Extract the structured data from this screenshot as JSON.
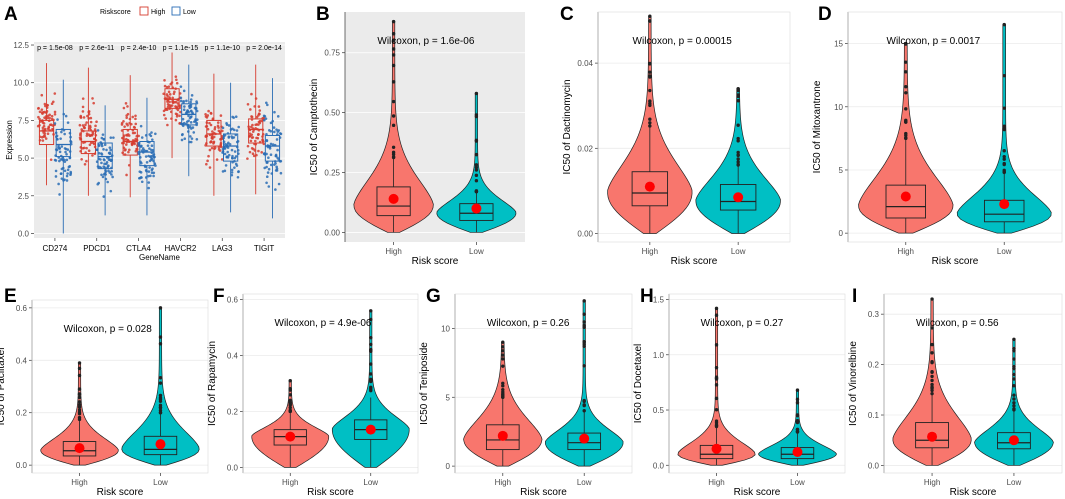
{
  "colors": {
    "high": "#f8766d",
    "low": "#00bfc4",
    "high_a": "#d63c2f",
    "low_a": "#2a6db5",
    "mean_dot": "#ff0000",
    "panel_bg": "#ebebeb"
  },
  "chart_data": [
    {
      "panel": "A",
      "type": "box",
      "legend_title": "Riskscore",
      "legend_labels": [
        "High",
        "Low"
      ],
      "xlabel": "GeneName",
      "ylabel": "Expression",
      "ylim": [
        -0.3,
        12.7
      ],
      "yticks": [
        "0.0",
        "2.5",
        "5.0",
        "7.5",
        "10.0",
        "12.5"
      ],
      "ytick_values": [
        0,
        2.5,
        5,
        7.5,
        10,
        12.5
      ],
      "categories": [
        "CD274",
        "PDCD1",
        "CTLA4",
        "HAVCR2",
        "LAG3",
        "TIGIT"
      ],
      "pvalues": [
        "p = 1.5e-08",
        "p = 2.6e-11",
        "p = 2.4e-10",
        "p = 1.1e-15",
        "p = 1.1e-10",
        "p = 2.0e-14"
      ],
      "series": [
        {
          "name": "High",
          "stats": [
            [
              3.2,
              5.9,
              6.8,
              7.5,
              11.3
            ],
            [
              2.5,
              5.3,
              6.1,
              6.8,
              11.0
            ],
            [
              2.4,
              5.2,
              6.1,
              6.9,
              10.5
            ],
            [
              5.0,
              8.3,
              8.9,
              9.6,
              12.0
            ],
            [
              2.5,
              5.8,
              6.6,
              7.5,
              10.6
            ],
            [
              2.6,
              6.0,
              6.9,
              7.6,
              11.2
            ]
          ]
        },
        {
          "name": "Low",
          "stats": [
            [
              0.0,
              5.1,
              5.9,
              6.9,
              10.2
            ],
            [
              1.2,
              4.3,
              5.1,
              6.0,
              8.5
            ],
            [
              1.2,
              4.5,
              5.4,
              6.1,
              9.0
            ],
            [
              3.8,
              7.2,
              7.9,
              8.6,
              11.2
            ],
            [
              1.4,
              4.8,
              5.8,
              6.6,
              10.0
            ],
            [
              1.0,
              4.8,
              5.8,
              6.5,
              10.3
            ]
          ]
        }
      ]
    },
    {
      "panel": "B",
      "type": "violin",
      "bg": true,
      "ylabel": "IC50 of Camptothecin",
      "xlabel": "Risk score",
      "categories": [
        "High",
        "Low"
      ],
      "wilcoxon": "Wilcoxon, p = 1.6e-06",
      "ylim": [
        -0.04,
        0.92
      ],
      "yticks": [
        "0.00",
        "0.25",
        "0.50",
        "0.75"
      ],
      "ytick_values": [
        0,
        0.25,
        0.5,
        0.75
      ],
      "groups": [
        {
          "name": "High",
          "min": 0.0,
          "q1": 0.07,
          "median": 0.11,
          "q3": 0.19,
          "max": 0.88,
          "mean": 0.14,
          "wmax": 0.31
        },
        {
          "name": "Low",
          "min": 0.0,
          "q1": 0.05,
          "median": 0.08,
          "q3": 0.12,
          "max": 0.58,
          "mean": 0.1,
          "wmax": 0.17
        }
      ]
    },
    {
      "panel": "C",
      "type": "violin",
      "bg": false,
      "ylabel": "IC50 of Dactinomycin",
      "xlabel": "Risk score",
      "categories": [
        "High",
        "Low"
      ],
      "wilcoxon": "Wilcoxon, p = 0.00015",
      "ylim": [
        -0.002,
        0.052
      ],
      "yticks": [
        "0.00",
        "0.02",
        "0.04"
      ],
      "ytick_values": [
        0,
        0.02,
        0.04
      ],
      "groups": [
        {
          "name": "High",
          "min": 0.0,
          "q1": 0.0065,
          "median": 0.0095,
          "q3": 0.0145,
          "max": 0.051,
          "mean": 0.011,
          "wmax": 0.025
        },
        {
          "name": "Low",
          "min": 0.0,
          "q1": 0.0055,
          "median": 0.0075,
          "q3": 0.0115,
          "max": 0.034,
          "mean": 0.0085,
          "wmax": 0.016
        }
      ]
    },
    {
      "panel": "D",
      "type": "violin",
      "bg": false,
      "ylabel": "IC50 of Mitoxantrone",
      "xlabel": "Risk score",
      "categories": [
        "High",
        "Low"
      ],
      "wilcoxon": "Wilcoxon, p = 0.0017",
      "ylim": [
        -0.7,
        17.5
      ],
      "yticks": [
        "0",
        "5",
        "10",
        "15"
      ],
      "ytick_values": [
        0,
        5,
        10,
        15
      ],
      "groups": [
        {
          "name": "High",
          "min": 0.0,
          "q1": 1.2,
          "median": 2.1,
          "q3": 3.8,
          "max": 15.0,
          "mean": 2.9,
          "wmax": 7.5
        },
        {
          "name": "Low",
          "min": 0.0,
          "q1": 0.9,
          "median": 1.5,
          "q3": 2.6,
          "max": 16.5,
          "mean": 2.3,
          "wmax": 4.8
        }
      ]
    },
    {
      "panel": "E",
      "type": "violin",
      "bg": false,
      "ylabel": "IC50 of Paclitaxel",
      "xlabel": "Risk score",
      "categories": [
        "High",
        "Low"
      ],
      "wilcoxon": "Wilcoxon, p = 0.028",
      "ylim": [
        -0.03,
        0.63
      ],
      "yticks": [
        "0.0",
        "0.2",
        "0.4",
        "0.6"
      ],
      "ytick_values": [
        0,
        0.2,
        0.4,
        0.6
      ],
      "groups": [
        {
          "name": "High",
          "min": 0.0,
          "q1": 0.035,
          "median": 0.055,
          "q3": 0.09,
          "max": 0.39,
          "mean": 0.065,
          "wmax": 0.17
        },
        {
          "name": "Low",
          "min": 0.0,
          "q1": 0.04,
          "median": 0.06,
          "q3": 0.11,
          "max": 0.6,
          "mean": 0.08,
          "wmax": 0.2
        }
      ]
    },
    {
      "panel": "F",
      "type": "violin",
      "bg": false,
      "ylabel": "IC50 of Rapamycin",
      "xlabel": "Risk score",
      "categories": [
        "High",
        "Low"
      ],
      "wilcoxon": "Wilcoxon, p = 4.9e-06",
      "ylim": [
        -0.02,
        0.62
      ],
      "yticks": [
        "0.0",
        "0.2",
        "0.4",
        "0.6"
      ],
      "ytick_values": [
        0,
        0.2,
        0.4,
        0.6
      ],
      "groups": [
        {
          "name": "High",
          "min": 0.0,
          "q1": 0.08,
          "median": 0.11,
          "q3": 0.135,
          "max": 0.31,
          "mean": 0.11,
          "wmax": 0.2
        },
        {
          "name": "Low",
          "min": 0.0,
          "q1": 0.1,
          "median": 0.135,
          "q3": 0.17,
          "max": 0.56,
          "mean": 0.135,
          "wmax": 0.25
        }
      ]
    },
    {
      "panel": "G",
      "type": "violin",
      "bg": false,
      "ylabel": "IC50 of Teniposide",
      "xlabel": "Risk score",
      "categories": [
        "High",
        "Low"
      ],
      "wilcoxon": "Wilcoxon, p = 0.26",
      "ylim": [
        -0.5,
        12.5
      ],
      "yticks": [
        "0",
        "5",
        "10"
      ],
      "ytick_values": [
        0,
        5,
        10
      ],
      "groups": [
        {
          "name": "High",
          "min": 0.0,
          "q1": 1.2,
          "median": 1.9,
          "q3": 3.0,
          "max": 9.0,
          "mean": 2.2,
          "wmax": 5.0
        },
        {
          "name": "Low",
          "min": 0.0,
          "q1": 1.2,
          "median": 1.7,
          "q3": 2.4,
          "max": 12.0,
          "mean": 2.0,
          "wmax": 4.0
        }
      ]
    },
    {
      "panel": "H",
      "type": "violin",
      "bg": false,
      "ylabel": "IC50 of Docetaxel",
      "xlabel": "Risk score",
      "categories": [
        "High",
        "Low"
      ],
      "wilcoxon": "Wilcoxon, p = 0.27",
      "ylim": [
        -0.07,
        1.55
      ],
      "yticks": [
        "0.0",
        "0.5",
        "1.0",
        "1.5"
      ],
      "ytick_values": [
        0,
        0.5,
        1.0,
        1.5
      ],
      "groups": [
        {
          "name": "High",
          "min": 0.0,
          "q1": 0.06,
          "median": 0.1,
          "q3": 0.18,
          "max": 1.42,
          "mean": 0.15,
          "wmax": 0.35
        },
        {
          "name": "Low",
          "min": 0.0,
          "q1": 0.06,
          "median": 0.1,
          "q3": 0.16,
          "max": 0.68,
          "mean": 0.12,
          "wmax": 0.3
        }
      ]
    },
    {
      "panel": "I",
      "type": "violin",
      "bg": false,
      "ylabel": "IC50 of Vinorelbine",
      "xlabel": "Risk score",
      "categories": [
        "High",
        "Low"
      ],
      "wilcoxon": "Wilcoxon, p = 0.56",
      "ylim": [
        -0.015,
        0.34
      ],
      "yticks": [
        "0.0",
        "0.1",
        "0.2",
        "0.3"
      ],
      "ytick_values": [
        0,
        0.1,
        0.2,
        0.3
      ],
      "groups": [
        {
          "name": "High",
          "min": 0.0,
          "q1": 0.035,
          "median": 0.05,
          "q3": 0.085,
          "max": 0.33,
          "mean": 0.057,
          "wmax": 0.14
        },
        {
          "name": "Low",
          "min": 0.0,
          "q1": 0.033,
          "median": 0.045,
          "q3": 0.065,
          "max": 0.25,
          "mean": 0.05,
          "wmax": 0.11
        }
      ]
    }
  ]
}
